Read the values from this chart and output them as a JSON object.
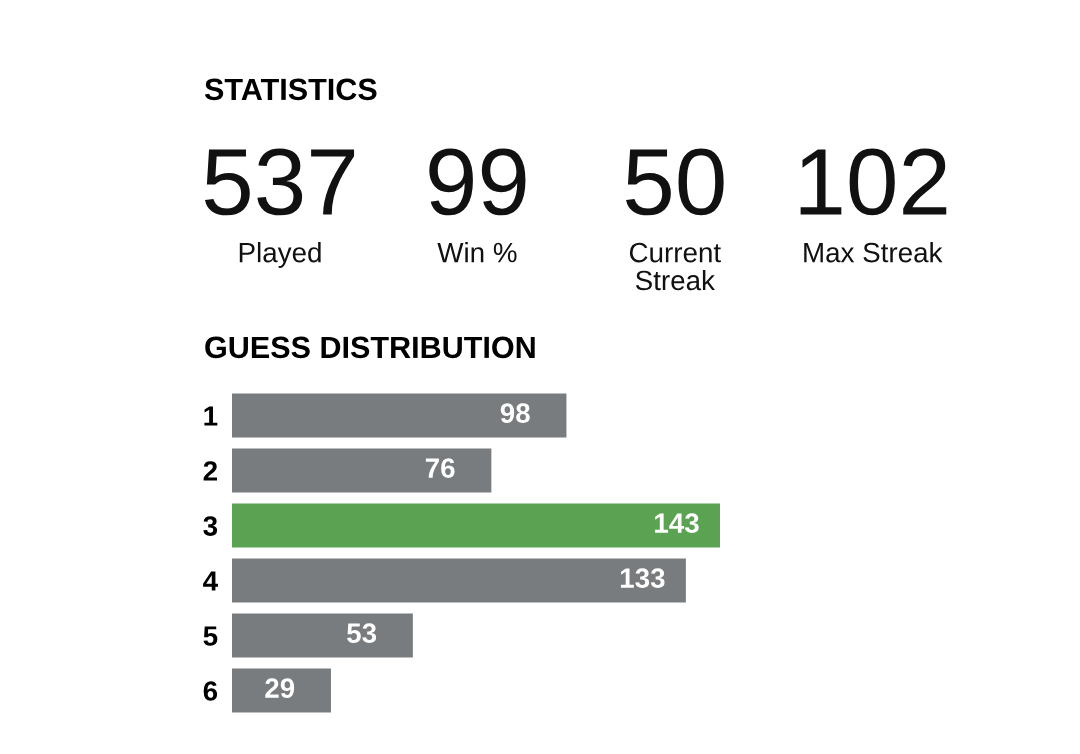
{
  "chart_data": [
    {
      "type": "other",
      "title": "STATISTICS",
      "categories": [
        "Played",
        "Win %",
        "Current\nStreak",
        "Max Streak"
      ],
      "values": [
        537,
        99,
        50,
        102
      ],
      "data_labels": true
    },
    {
      "type": "bar",
      "orientation": "horizontal",
      "title": "GUESS DISTRIBUTION",
      "categories": [
        "1",
        "2",
        "3",
        "4",
        "5",
        "6"
      ],
      "values": [
        98,
        76,
        143,
        133,
        53,
        29
      ],
      "colors": [
        "#787c7e",
        "#787c7e",
        "#5ba352",
        "#787c7e",
        "#787c7e",
        "#787c7e"
      ],
      "data_labels": true
    }
  ]
}
